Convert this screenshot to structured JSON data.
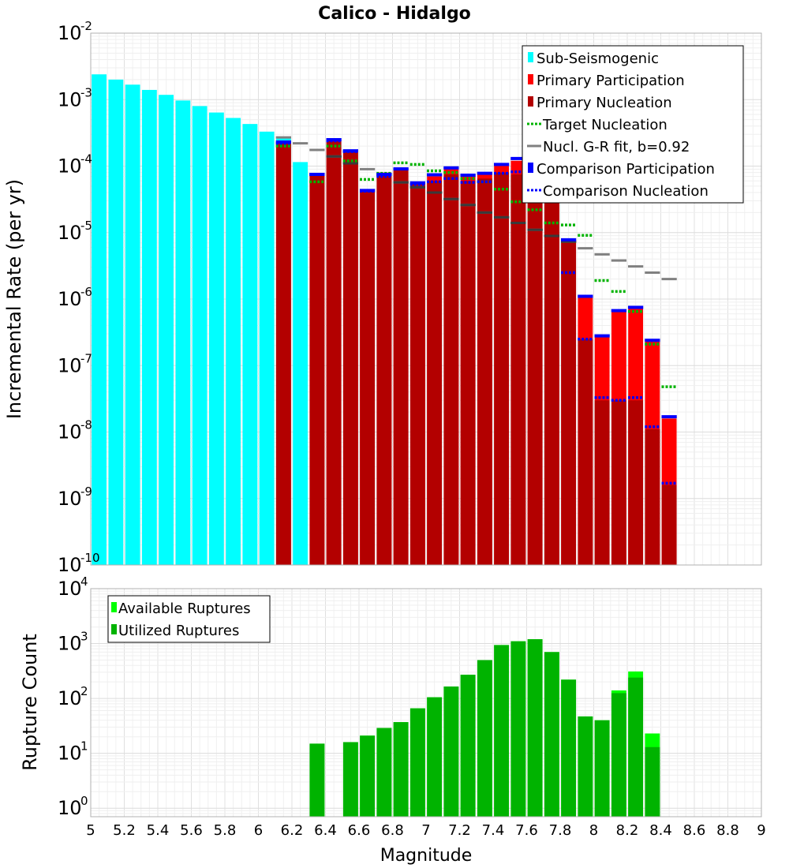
{
  "chart_data": [
    {
      "type": "bar",
      "title": "Calico - Hidalgo",
      "ylabel": "Incremental Rate (per yr)",
      "yscale": "log",
      "ylim": [
        1e-10,
        0.01
      ],
      "xlim": [
        5,
        9
      ],
      "bin_width": 0.1,
      "legend_position": "top-right",
      "legend": [
        {
          "label": "Sub-Seismogenic",
          "color": "#00ffff",
          "style": "bar"
        },
        {
          "label": "Primary Participation",
          "color": "#ff0000",
          "style": "bar"
        },
        {
          "label": "Primary Nucleation",
          "color": "#b30000",
          "style": "bar"
        },
        {
          "label": " Target Nucleation",
          "color": "#00b300",
          "style": "dotted"
        },
        {
          "label": "Nucl. G-R fit, b=0.92",
          "color": "#808080",
          "style": "solid"
        },
        {
          "label": "Comparison Participation",
          "color": "#0000ff",
          "style": "bar"
        },
        {
          "label": " Comparison Nucleation",
          "color": "#0000ff",
          "style": "dotted"
        }
      ],
      "series": [
        {
          "name": "Sub-Seismogenic",
          "color": "#00ffff",
          "x": [
            5.05,
            5.15,
            5.25,
            5.35,
            5.45,
            5.55,
            5.65,
            5.75,
            5.85,
            5.95,
            6.05,
            6.15,
            6.25
          ],
          "values": [
            0.0024,
            0.002,
            0.00168,
            0.0014,
            0.00118,
            0.00097,
            0.0008,
            0.00064,
            0.00053,
            0.00043,
            0.00033,
            0.00026,
            0.000115
          ]
        },
        {
          "name": "Primary Participation",
          "color": "#ff0000",
          "x": [
            6.15,
            6.35,
            6.45,
            6.55,
            6.65,
            6.75,
            6.85,
            6.95,
            7.05,
            7.15,
            7.25,
            7.35,
            7.45,
            7.55,
            7.65,
            7.75,
            7.85,
            7.95,
            8.05,
            8.15,
            8.25,
            8.35,
            8.45
          ],
          "values": [
            0.00022,
            7.5e-05,
            0.00024,
            0.000165,
            4.2e-05,
            8e-05,
            9e-05,
            5.5e-05,
            7e-05,
            9e-05,
            7e-05,
            7.5e-05,
            0.000105,
            0.00012,
            7.5e-05,
            5e-05,
            7.5e-06,
            1.1e-06,
            2.7e-07,
            6.5e-07,
            7.4e-07,
            2.3e-07,
            1.6e-08
          ]
        },
        {
          "name": "Primary Nucleation",
          "color": "#b30000",
          "x": [
            6.15,
            6.35,
            6.45,
            6.55,
            6.65,
            6.75,
            6.85,
            6.95,
            7.05,
            7.15,
            7.25,
            7.35,
            7.45,
            7.55,
            7.65,
            7.75,
            7.85,
            7.95,
            8.05,
            8.15,
            8.25,
            8.35,
            8.45
          ],
          "values": [
            0.00022,
            7.5e-05,
            0.00024,
            0.000165,
            4.2e-05,
            7.5e-05,
            9e-05,
            5.5e-05,
            6e-05,
            7.5e-05,
            6e-05,
            6.5e-05,
            8e-05,
            7.5e-05,
            5e-05,
            4e-05,
            7.5e-06,
            2.5e-07,
            3e-08,
            3e-08,
            3e-08,
            1.1e-08,
            1.6e-09
          ]
        },
        {
          "name": "Target Nucleation",
          "color": "#00b300",
          "x": [
            6.15,
            6.35,
            6.45,
            6.55,
            6.65,
            6.75,
            6.85,
            6.95,
            7.05,
            7.15,
            7.25,
            7.35,
            7.45,
            7.55,
            7.65,
            7.75,
            7.85,
            7.95,
            8.05,
            8.15,
            8.25,
            8.35,
            8.45
          ],
          "values": [
            0.0002,
            5.8e-05,
            0.0002,
            0.00012,
            6.3e-05,
            7.8e-05,
            0.000112,
            0.000106,
            8.5e-05,
            8e-05,
            6.5e-05,
            5.8e-05,
            4.5e-05,
            2.9e-05,
            2.2e-05,
            1.4e-05,
            1.3e-05,
            9.1e-06,
            1.9e-06,
            1.3e-06,
            6.5e-07,
            2.1e-07,
            4.8e-08
          ]
        },
        {
          "name": "Nucl. G-R fit, b=0.92",
          "color": "#808080",
          "x": [
            6.15,
            6.25,
            6.35,
            6.45,
            6.55,
            6.65,
            6.75,
            6.85,
            6.95,
            7.05,
            7.15,
            7.25,
            7.35,
            7.45,
            7.55,
            7.65,
            7.75,
            7.85,
            7.95,
            8.05,
            8.15,
            8.25,
            8.35,
            8.45
          ],
          "values": [
            0.00027,
            0.00022,
            0.000175,
            0.00014,
            0.00011,
            9e-05,
            7.5e-05,
            5.7e-05,
            4.8e-05,
            4e-05,
            3.2e-05,
            2.6e-05,
            2e-05,
            1.7e-05,
            1.4e-05,
            1.1e-05,
            8.9e-06,
            7.3e-06,
            5.8e-06,
            4.7e-06,
            3.8e-06,
            3.1e-06,
            2.5e-06,
            2e-06
          ]
        },
        {
          "name": "Comparison Participation",
          "color": "#0000ff",
          "x": [
            6.15,
            6.35,
            6.45,
            6.55,
            6.65,
            6.75,
            6.85,
            6.95,
            7.05,
            7.15,
            7.25,
            7.35,
            7.45,
            7.55,
            7.65,
            7.75,
            7.85,
            7.95,
            8.05,
            8.15,
            8.25,
            8.35,
            8.45
          ],
          "values": [
            0.00023,
            7.5e-05,
            0.00025,
            0.00017,
            4.3e-05,
            7.5e-05,
            9.1e-05,
            5.6e-05,
            7.4e-05,
            9.4e-05,
            7.3e-05,
            7.8e-05,
            0.000106,
            0.00013,
            8.6e-05,
            5.2e-05,
            7.8e-06,
            1.1e-06,
            2.8e-07,
            6.7e-07,
            7.5e-07,
            2.4e-07,
            1.7e-08
          ]
        },
        {
          "name": "Comparison Nucleation",
          "color": "#0000ff",
          "x": [
            6.15,
            6.35,
            6.45,
            6.55,
            6.65,
            6.75,
            6.85,
            6.95,
            7.05,
            7.15,
            7.25,
            7.35,
            7.45,
            7.55,
            7.65,
            7.75,
            7.85,
            7.95,
            8.05,
            8.15,
            8.25,
            8.35,
            8.45
          ],
          "values": [
            0.00022,
            7.5e-05,
            0.00024,
            0.000165,
            4.2e-05,
            7e-05,
            9e-05,
            5.3e-05,
            5.8e-05,
            6.5e-05,
            5.7e-05,
            5.8e-05,
            7.8e-05,
            8.2e-05,
            6e-05,
            3.4e-05,
            2.5e-06,
            2.5e-07,
            3.3e-08,
            3e-08,
            3.3e-08,
            1.2e-08,
            1.7e-09
          ]
        }
      ]
    },
    {
      "type": "bar",
      "xlabel": "Magnitude",
      "ylabel": "Rupture Count",
      "yscale": "log",
      "ylim": [
        0.7,
        10000
      ],
      "xlim": [
        5,
        9
      ],
      "bin_width": 0.1,
      "xticks": [
        "5",
        "5.2",
        "5.4",
        "5.6",
        "5.8",
        "6",
        "6.2",
        "6.4",
        "6.6",
        "6.8",
        "7",
        "7.2",
        "7.4",
        "7.6",
        "7.8",
        "8",
        "8.2",
        "8.4",
        "8.6",
        "8.8",
        "9"
      ],
      "legend_position": "top-left",
      "legend": [
        {
          "label": "Available Ruptures",
          "color": "#00ff00"
        },
        {
          "label": "Utilized Ruptures",
          "color": "#00b300"
        }
      ],
      "series": [
        {
          "name": "Available Ruptures",
          "color": "#00ff00",
          "x": [
            6.35,
            6.55,
            6.65,
            6.75,
            6.85,
            6.95,
            7.05,
            7.15,
            7.25,
            7.35,
            7.45,
            7.55,
            7.65,
            7.75,
            7.85,
            7.95,
            8.05,
            8.15,
            8.25,
            8.35
          ],
          "values": [
            15,
            16,
            21,
            29,
            37,
            66,
            105,
            165,
            270,
            500,
            940,
            1100,
            1200,
            700,
            220,
            47,
            40,
            140,
            310,
            23
          ]
        },
        {
          "name": "Utilized Ruptures",
          "color": "#00b300",
          "x": [
            6.35,
            6.55,
            6.65,
            6.75,
            6.85,
            6.95,
            7.05,
            7.15,
            7.25,
            7.35,
            7.45,
            7.55,
            7.65,
            7.75,
            7.85,
            7.95,
            8.05,
            8.15,
            8.25,
            8.35
          ],
          "values": [
            15,
            16,
            21,
            29,
            37,
            66,
            105,
            165,
            270,
            500,
            940,
            1100,
            1200,
            700,
            220,
            47,
            40,
            125,
            240,
            13
          ]
        }
      ]
    }
  ]
}
